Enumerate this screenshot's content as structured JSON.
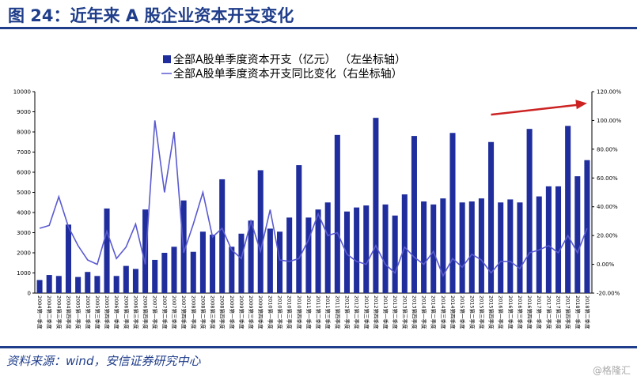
{
  "figure": {
    "title": "图 24：近年来 A 股企业资本开支变化",
    "source": "资料来源：wind，安信证券研究中心",
    "watermark": "@格隆汇",
    "bar_color": "#1f2e9c",
    "line_color": "#5a5ad0",
    "arrow_color": "#cc2222",
    "title_color": "#1f3d8a"
  },
  "chart_data": {
    "type": "bar",
    "legend_position": "top-center",
    "grid": false,
    "legend": [
      "全部A股单季度资本开支（亿元）  （左坐标轴）",
      "全部A股单季度资本开支同比变化（右坐标轴）"
    ],
    "categories": [
      "2004第一季度",
      "2004第二季度",
      "2004第三季度",
      "2004第四季度",
      "2005第一季度",
      "2005第二季度",
      "2005第三季度",
      "2005第四季度",
      "2006第一季度",
      "2006第二季度",
      "2006第三季度",
      "2006第四季度",
      "2007第一季度",
      "2007第二季度",
      "2007第三季度",
      "2007第四季度",
      "2008第一季度",
      "2008第二季度",
      "2008第三季度",
      "2008第四季度",
      "2009第一季度",
      "2009第二季度",
      "2009第三季度",
      "2009第四季度",
      "2010第一季度",
      "2010第二季度",
      "2010第三季度",
      "2010第四季度",
      "2011第一季度",
      "2011第二季度",
      "2011第三季度",
      "2011第四季度",
      "2012第一季度",
      "2012第二季度",
      "2012第三季度",
      "2012第四季度",
      "2013第一季度",
      "2013第二季度",
      "2013第三季度",
      "2013第四季度",
      "2014第一季度",
      "2014第二季度",
      "2014第三季度",
      "2014第四季度",
      "2015第一季度",
      "2015第二季度",
      "2015第三季度",
      "2015第四季度",
      "2016第一季度",
      "2016第二季度",
      "2016第三季度",
      "2016第四季度",
      "2017第一季度",
      "2017第二季度",
      "2017第三季度",
      "2017第四季度",
      "2018第一季度",
      "2018第二季度"
    ],
    "series": [
      {
        "name": "全部A股单季度资本开支（亿元）  （左坐标轴）",
        "type": "bar",
        "axis": "left",
        "values": [
          650,
          900,
          850,
          3400,
          800,
          1050,
          850,
          4200,
          850,
          1350,
          1200,
          4150,
          1650,
          2000,
          2300,
          4600,
          2050,
          3050,
          2900,
          5650,
          2300,
          2950,
          3600,
          6100,
          3200,
          3050,
          3750,
          6350,
          3750,
          4150,
          4500,
          7850,
          4050,
          4250,
          4350,
          8700,
          4400,
          3850,
          4900,
          7800,
          4550,
          4400,
          4700,
          7950,
          4500,
          4550,
          4700,
          7500,
          4500,
          4650,
          4500,
          8150,
          4800,
          5300,
          5300,
          8300,
          5800,
          6600
        ]
      },
      {
        "name": "全部A股单季度资本开支同比变化（右坐标轴）",
        "type": "line",
        "axis": "right",
        "values": [
          0.25,
          0.27,
          0.47,
          0.26,
          0.13,
          0.03,
          0.0,
          0.23,
          0.04,
          0.12,
          0.28,
          0.0,
          1.0,
          0.5,
          0.92,
          0.08,
          0.28,
          0.5,
          0.19,
          0.25,
          0.1,
          0.04,
          0.3,
          0.09,
          0.38,
          0.03,
          0.02,
          0.04,
          0.17,
          0.35,
          0.2,
          0.22,
          0.07,
          0.02,
          0.0,
          0.13,
          0.0,
          -0.06,
          0.12,
          0.05,
          0.0,
          0.09,
          -0.08,
          0.04,
          -0.02,
          0.07,
          0.03,
          -0.06,
          0.02,
          0.02,
          -0.03,
          0.08,
          0.1,
          0.13,
          0.08,
          0.2,
          0.08,
          0.25
        ]
      }
    ],
    "y_left": {
      "min": 0,
      "max": 10000,
      "ticks": [
        "0",
        "1000",
        "2000",
        "3000",
        "4000",
        "5000",
        "6000",
        "7000",
        "8000",
        "9000",
        "10000"
      ]
    },
    "y_right": {
      "min": -0.2,
      "max": 1.2,
      "ticks": [
        "-20.00%",
        "0.00%",
        "20.00%",
        "40.00%",
        "60.00%",
        "80.00%",
        "100.00%",
        "120.00%"
      ]
    },
    "annotation": {
      "type": "arrow",
      "from_index": 47,
      "from_value": 1.04,
      "to_index": 57,
      "to_value": 1.12
    }
  }
}
